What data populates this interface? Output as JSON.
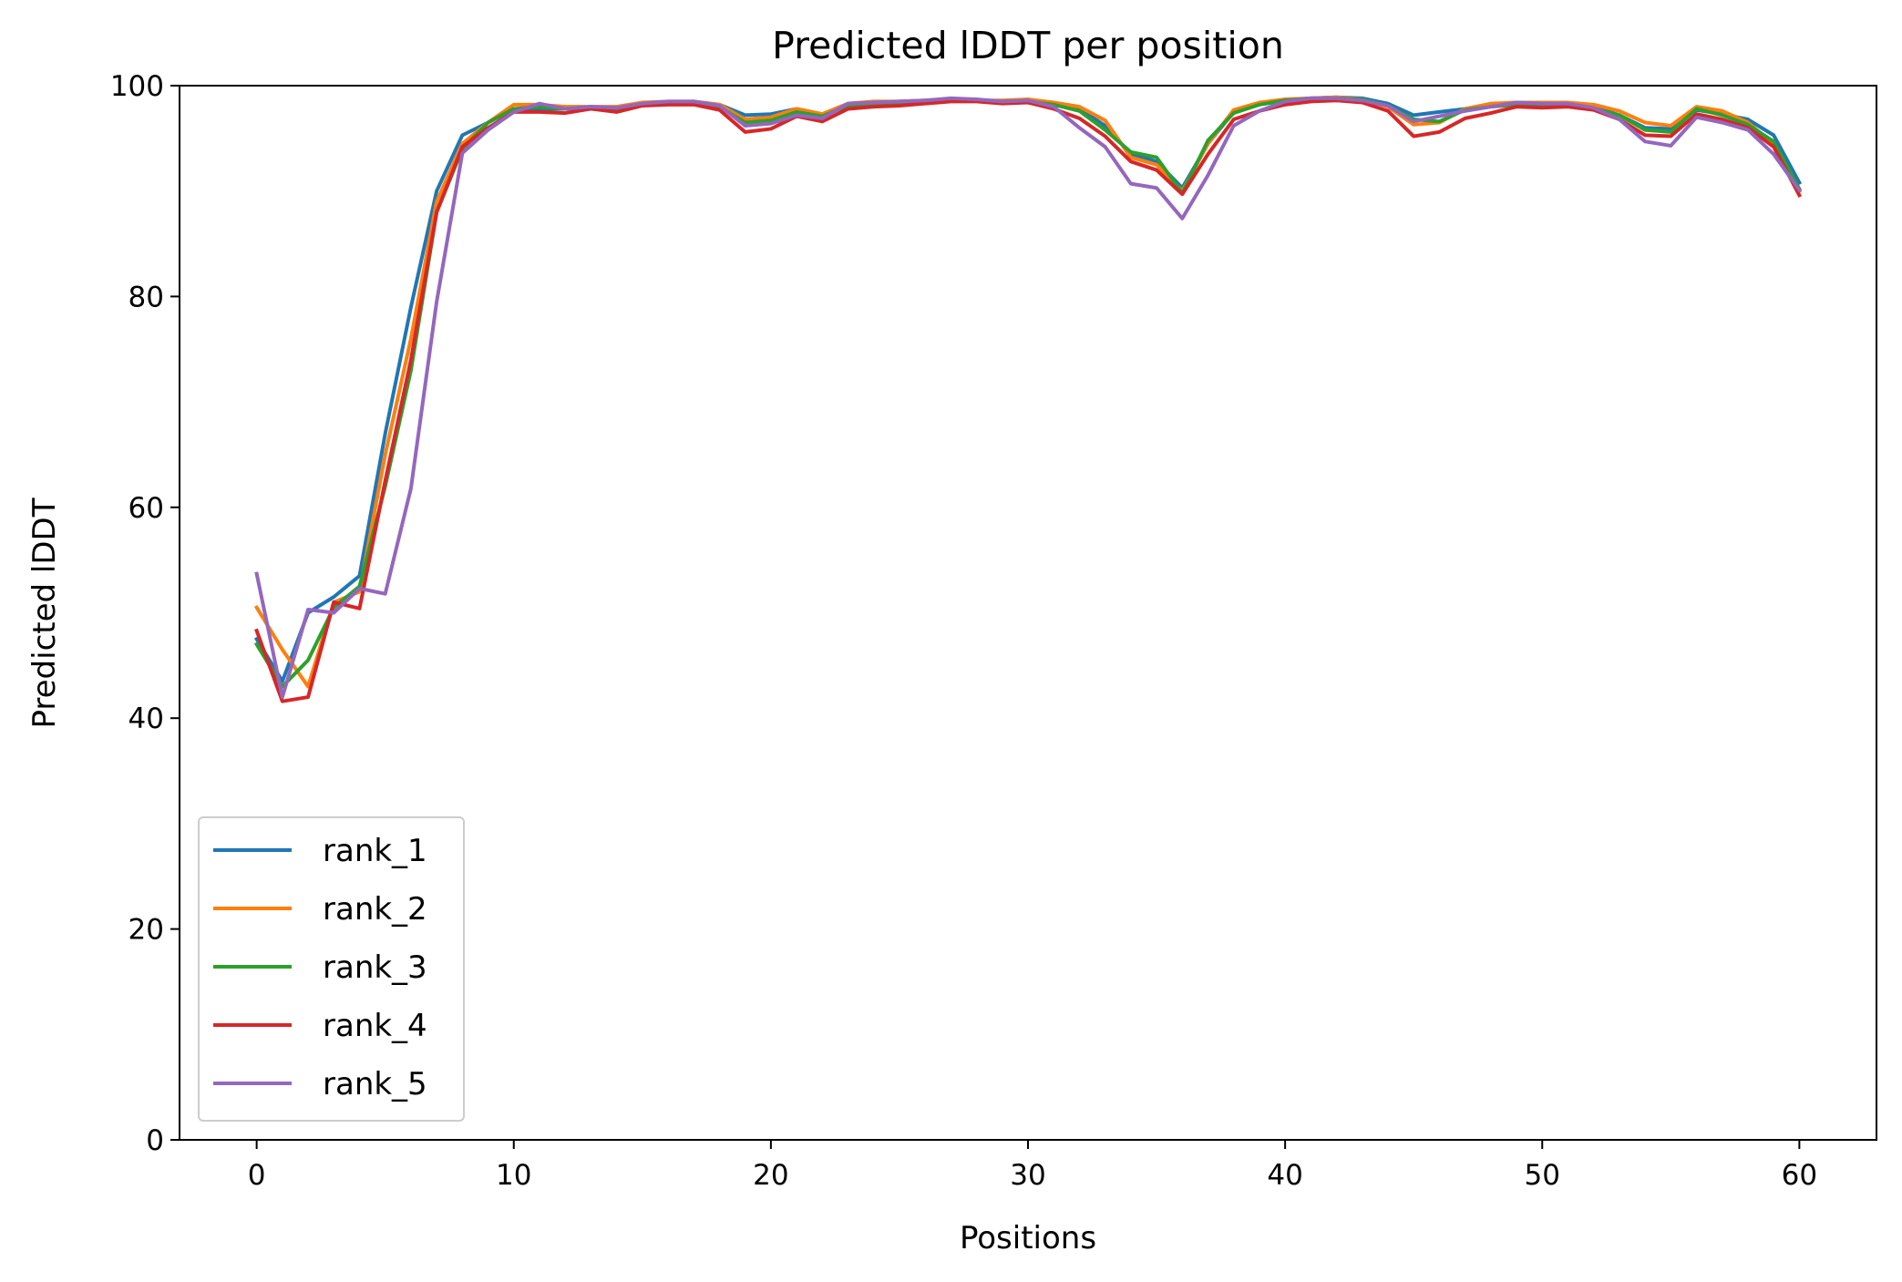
{
  "chart_data": {
    "type": "line",
    "title": "Predicted lDDT per position",
    "xlabel": "Positions",
    "ylabel": "Predicted lDDT",
    "xlim": [
      -3,
      63
    ],
    "ylim": [
      0,
      100
    ],
    "xticks": [
      0,
      10,
      20,
      30,
      40,
      50,
      60
    ],
    "yticks": [
      0,
      20,
      40,
      60,
      80,
      100
    ],
    "grid": false,
    "legend_position": "lower-left",
    "x": [
      0,
      1,
      2,
      3,
      4,
      5,
      6,
      7,
      8,
      9,
      10,
      11,
      12,
      13,
      14,
      15,
      16,
      17,
      18,
      19,
      20,
      21,
      22,
      23,
      24,
      25,
      26,
      27,
      28,
      29,
      30,
      31,
      32,
      33,
      34,
      35,
      36,
      37,
      38,
      39,
      40,
      41,
      42,
      43,
      44,
      45,
      46,
      47,
      48,
      49,
      50,
      51,
      52,
      53,
      54,
      55,
      56,
      57,
      58,
      59,
      60
    ],
    "series": [
      {
        "name": "rank_1",
        "color": "#1f77b4",
        "values": [
          47.5,
          43.5,
          50,
          51.5,
          53.5,
          67,
          79,
          90,
          95.3,
          96.5,
          97.8,
          97.8,
          97.8,
          97.9,
          97.8,
          98.2,
          98.4,
          98.5,
          98.2,
          97.2,
          97.3,
          97.8,
          97.3,
          98.3,
          98.4,
          98.5,
          98.6,
          98.7,
          98.6,
          98.5,
          98.6,
          98.2,
          97.8,
          96.2,
          93.5,
          92.8,
          90.3,
          94.5,
          97.5,
          98.2,
          98.6,
          98.8,
          98.9,
          98.8,
          98.3,
          97.2,
          97.5,
          97.8,
          98.2,
          98.4,
          98.3,
          98.3,
          98,
          97.2,
          96,
          95.9,
          97.7,
          97.3,
          96.8,
          95.3,
          90.8
        ]
      },
      {
        "name": "rank_2",
        "color": "#ff7f0e",
        "values": [
          50.5,
          46.5,
          43,
          51,
          52,
          65,
          76,
          89,
          94.5,
          96.5,
          98.2,
          98.2,
          98,
          98,
          98,
          98.4,
          98.5,
          98.5,
          98.2,
          96.8,
          97,
          97.8,
          97.3,
          98.3,
          98.5,
          98.5,
          98.6,
          98.7,
          98.6,
          98.6,
          98.7,
          98.4,
          98,
          96.7,
          93.2,
          92.5,
          90,
          94.5,
          97.7,
          98.4,
          98.7,
          98.8,
          98.9,
          98.7,
          98,
          96.3,
          96.5,
          97.8,
          98.3,
          98.4,
          98.4,
          98.4,
          98.2,
          97.6,
          96.5,
          96.2,
          98,
          97.6,
          96.5,
          94.5,
          90
        ]
      },
      {
        "name": "rank_3",
        "color": "#2ca02c",
        "values": [
          47,
          43,
          45.5,
          50.5,
          52.5,
          62,
          73,
          88,
          94,
          96.5,
          97.8,
          98,
          97.8,
          98,
          97.8,
          98.2,
          98.4,
          98.4,
          98,
          96.5,
          96.7,
          97.5,
          97.1,
          98.1,
          98.3,
          98.4,
          98.5,
          98.6,
          98.6,
          98.5,
          98.5,
          98.2,
          97.6,
          95.8,
          93.7,
          93.2,
          89.8,
          94.8,
          97.4,
          98.2,
          98.6,
          98.8,
          98.8,
          98.7,
          98.1,
          96.8,
          96.6,
          97.7,
          98,
          98.2,
          98.2,
          98.2,
          97.8,
          97.2,
          95.8,
          95.6,
          97.8,
          97.2,
          96.3,
          94.7,
          90.2
        ]
      },
      {
        "name": "rank_4",
        "color": "#d62728",
        "values": [
          48.3,
          41.6,
          42,
          51,
          50.4,
          62.5,
          74,
          88,
          94.2,
          96,
          97.5,
          97.5,
          97.4,
          97.8,
          97.5,
          98.1,
          98.2,
          98.2,
          97.7,
          95.6,
          95.9,
          97.1,
          96.6,
          97.8,
          98,
          98.1,
          98.3,
          98.5,
          98.5,
          98.3,
          98.4,
          97.8,
          96.9,
          95.2,
          92.8,
          92,
          89.7,
          93.5,
          96.8,
          97.6,
          98.2,
          98.5,
          98.6,
          98.4,
          97.6,
          95.2,
          95.6,
          96.9,
          97.4,
          98,
          97.9,
          98,
          97.7,
          96.8,
          95.3,
          95.2,
          97.3,
          96.8,
          96,
          94.2,
          89.6
        ]
      },
      {
        "name": "rank_5",
        "color": "#9467bd",
        "values": [
          53.7,
          42,
          50.3,
          50,
          52.3,
          51.8,
          61.8,
          79.5,
          93.6,
          95.8,
          97.5,
          98.3,
          97.8,
          98,
          97.9,
          98.3,
          98.5,
          98.5,
          98.1,
          96.2,
          96.4,
          97.2,
          96.9,
          98.3,
          98.4,
          98.5,
          98.6,
          98.8,
          98.7,
          98.5,
          98.6,
          98,
          96,
          94.2,
          90.7,
          90.3,
          87.4,
          91.5,
          96.2,
          97.6,
          98.5,
          98.8,
          98.8,
          98.6,
          98.1,
          96.6,
          97.1,
          97.6,
          98,
          98.4,
          98.3,
          98.3,
          97.9,
          96.8,
          94.7,
          94.3,
          97,
          96.5,
          95.8,
          93.5,
          90.1
        ]
      }
    ]
  }
}
